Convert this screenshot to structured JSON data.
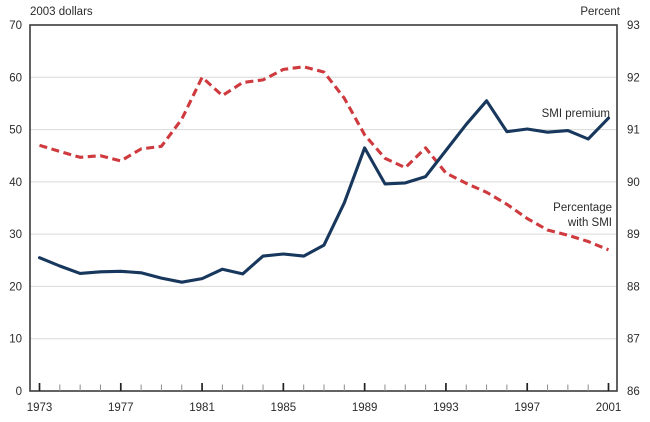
{
  "chart_data": {
    "type": "line",
    "title": "",
    "x": [
      1973,
      1974,
      1975,
      1976,
      1977,
      1978,
      1979,
      1980,
      1981,
      1982,
      1983,
      1984,
      1985,
      1986,
      1987,
      1988,
      1989,
      1990,
      1991,
      1992,
      1993,
      1994,
      1995,
      1996,
      1997,
      1998,
      1999,
      2000,
      2001
    ],
    "series": [
      {
        "name": "SMI premium",
        "axis": "left",
        "line_style": "solid",
        "values": [
          25.5,
          23.9,
          22.5,
          22.8,
          22.9,
          22.6,
          21.6,
          20.8,
          21.5,
          23.3,
          22.4,
          25.8,
          26.2,
          25.8,
          27.9,
          36.0,
          46.5,
          39.6,
          39.8,
          41.0,
          46.0,
          51.0,
          55.5,
          49.6,
          50.1,
          49.5,
          49.8,
          48.2,
          52.2
        ]
      },
      {
        "name": "Percentage with SMI",
        "axis": "right",
        "line_style": "dashed",
        "values": [
          90.7,
          90.58,
          90.47,
          90.5,
          90.4,
          90.63,
          90.68,
          91.2,
          92.0,
          91.65,
          91.9,
          91.95,
          92.15,
          92.2,
          92.1,
          91.6,
          90.9,
          90.45,
          90.27,
          90.65,
          90.17,
          89.97,
          89.8,
          89.57,
          89.3,
          89.08,
          88.98,
          88.86,
          88.7
        ]
      }
    ],
    "left_axis": {
      "title": "2003 dollars",
      "min": 0,
      "max": 70,
      "tick_step": 10
    },
    "right_axis": {
      "title": "Percent",
      "min": 86,
      "max": 93,
      "tick_step": 1
    },
    "x_axis": {
      "min": 1973,
      "max": 2001,
      "labeled_years": [
        1973,
        1977,
        1981,
        1985,
        1989,
        1993,
        1997,
        2001
      ],
      "minor_tick_every": 1
    },
    "grid": {
      "horizontal": true,
      "vertical": false,
      "at_left_values": [
        10,
        20,
        30,
        40,
        50,
        60
      ]
    },
    "legend_position": "inline-annotations",
    "annotations": {
      "smi_premium_label": "SMI premium",
      "pct_label_line1": "Percentage",
      "pct_label_line2": "with SMI"
    },
    "colors": {
      "premium_line": "#17375d",
      "percentage_line": "#ce3a3e",
      "gridline": "#d9d9d9",
      "frame": "#3b3b3b",
      "text": "#2b2b2b",
      "minor_tick": "#8c8c8c",
      "major_tick": "#222222",
      "background": "#ffffff"
    }
  }
}
